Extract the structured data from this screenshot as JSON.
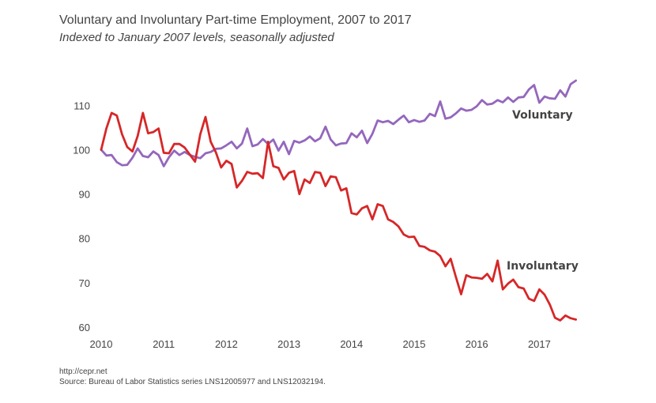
{
  "header": {
    "title": "Voluntary and Involuntary Part-time Employment, 2007 to 2017",
    "subtitle": "Indexed to January 2007 levels, seasonally adjusted"
  },
  "footer": {
    "url": "http://cepr.net",
    "source": "Source:  Bureau of Labor Statistics series LNS12005977 and LNS12032194."
  },
  "colors": {
    "voluntary": "#9467bd",
    "involuntary": "#d62728"
  },
  "chart_data": {
    "type": "line",
    "title": "Voluntary and Involuntary Part-time Employment, 2007 to 2017",
    "subtitle": "Indexed to January 2007 levels, seasonally adjusted",
    "xlabel": "",
    "ylabel": "",
    "xlim": [
      2010,
      2017.75
    ],
    "ylim": [
      59,
      119
    ],
    "x_ticks": [
      2010,
      2011,
      2012,
      2013,
      2014,
      2015,
      2016,
      2017
    ],
    "y_ticks": [
      60,
      70,
      80,
      90,
      100,
      110
    ],
    "grid": false,
    "legend": "inline labels",
    "series": [
      {
        "name": "Voluntary",
        "color": "#9467bd",
        "start": 2010,
        "step": 0.08333,
        "values": [
          100,
          98.7,
          98.8,
          97.2,
          96.5,
          96.6,
          98.2,
          100.3,
          98.6,
          98.3,
          99.6,
          98.8,
          96.3,
          98.3,
          99.8,
          98.8,
          99.5,
          98.8,
          98.4,
          98.1,
          99.2,
          99.5,
          100.2,
          100.3,
          101,
          101.8,
          100.3,
          101.4,
          104.8,
          100.8,
          101.2,
          102.4,
          101.3,
          102.3,
          99.8,
          101.8,
          99,
          102,
          101.6,
          102.1,
          103,
          101.9,
          102.6,
          105.2,
          102.3,
          101,
          101.4,
          101.5,
          103.7,
          102.8,
          104.3,
          101.5,
          103.6,
          106.6,
          106.2,
          106.5,
          105.8,
          106.8,
          107.7,
          106.2,
          106.7,
          106.3,
          106.6,
          108.1,
          107.6,
          110.9,
          107,
          107.3,
          108.2,
          109.3,
          108.8,
          109,
          109.8,
          111.2,
          110.2,
          110.4,
          111.2,
          110.7,
          111.8,
          110.8,
          111.8,
          111.9,
          113.6,
          114.6,
          110.6,
          112,
          111.6,
          111.5,
          113.4,
          112,
          114.8,
          115.6
        ]
      },
      {
        "name": "Involuntary",
        "color": "#d62728",
        "start": 2010,
        "step": 0.08333,
        "values": [
          100,
          104.8,
          108.3,
          107.7,
          103.5,
          100.6,
          99.6,
          103.1,
          108.3,
          103.7,
          104,
          104.8,
          99.3,
          99.2,
          101.3,
          101.3,
          100.5,
          98.9,
          97.3,
          103.5,
          107.4,
          101.8,
          99.4,
          96,
          97.5,
          96.8,
          91.5,
          93,
          95,
          94.6,
          94.7,
          93.6,
          101.8,
          96.3,
          95.9,
          93.3,
          94.8,
          95.2,
          90,
          93.3,
          92.5,
          95,
          94.8,
          91.8,
          94,
          93.8,
          90.8,
          91.3,
          85.7,
          85.4,
          86.8,
          87.3,
          84.3,
          87.7,
          87.3,
          84.3,
          83.7,
          82.7,
          80.9,
          80.3,
          80.4,
          78.3,
          78.1,
          77.3,
          77,
          76,
          73.7,
          75.4,
          71.3,
          67.4,
          71.7,
          71.2,
          71.1,
          70.9,
          72,
          70.3,
          75,
          68.5,
          69.8,
          70.7,
          69,
          68.7,
          66.4,
          65.9,
          68.5,
          67.3,
          65.1,
          62.1,
          61.5,
          62.6,
          62,
          61.7
        ]
      }
    ],
    "annotations": [
      {
        "text": "Voluntary",
        "series": "Voluntary"
      },
      {
        "text": "Involuntary",
        "series": "Involuntary"
      }
    ]
  }
}
